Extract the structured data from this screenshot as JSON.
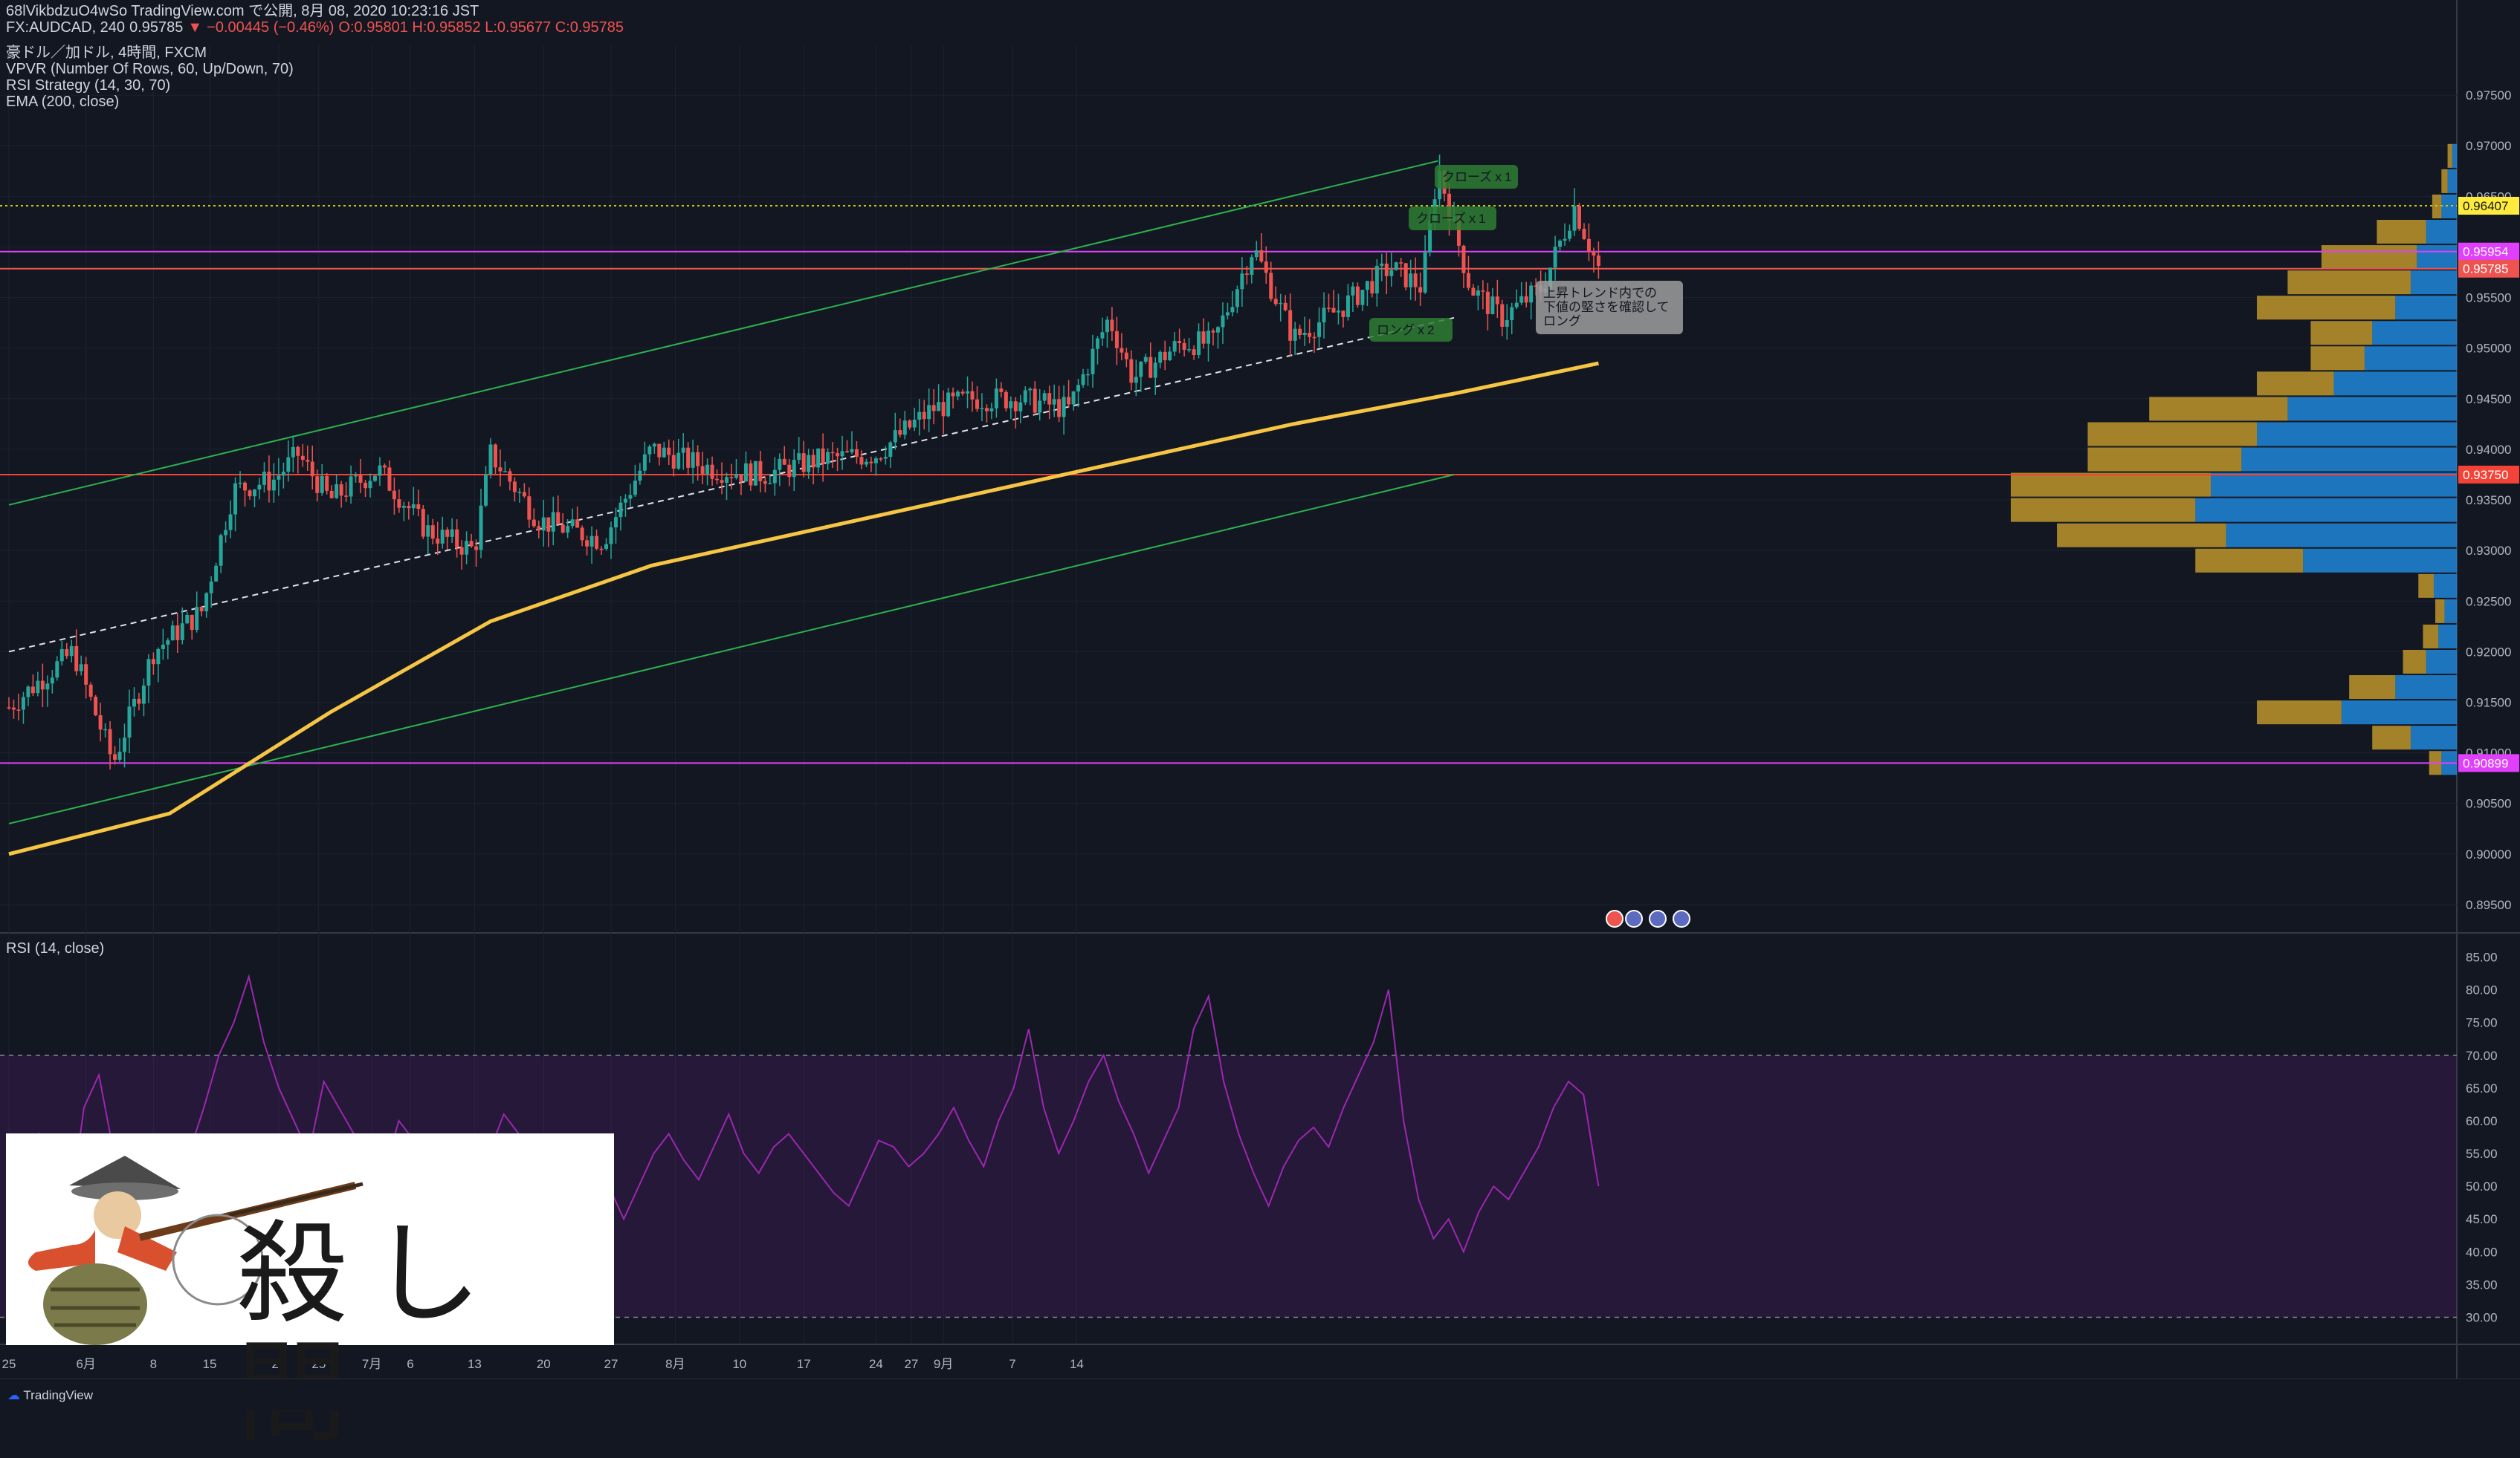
{
  "header": {
    "line1": "68lVikbdzuO4wSo TradingView.com で公開, 8月 08, 2020 10:23:16 JST",
    "symbol": "FX:AUDCAD, 240",
    "last": "0.95785",
    "change": "−0.00445 (−0.46%)",
    "ohlc": "O:0.95801 H:0.95852 L:0.95677 C:0.95785",
    "title": "豪ドル／加ドル, 4時間, FXCM",
    "ind1": "VPVR (Number Of Rows, 60, Up/Down, 70)",
    "ind2": "RSI Strategy (14, 30, 70)",
    "ind3": "EMA (200, close)"
  },
  "rsi_title": "RSI (14, close)",
  "logo": "TradingView",
  "stamp_text": "殺し間",
  "colors": {
    "bg": "#131722",
    "up": "#26a69a",
    "down": "#ef5350",
    "ema": "#f6c544",
    "rsi": "#9c27b0",
    "vp_up": "#2196f3",
    "vp_down": "#d4a72c",
    "channel": "#2bb24c"
  },
  "annotations": {
    "close1": "クローズｘ1",
    "close2": "クローズｘ1",
    "long2": "ロングｘ2",
    "note_line1": "上昇トレンド内での",
    "note_line2": "下値の堅さを確認して",
    "note_line3": "ロング"
  },
  "price_badges": [
    {
      "label": "0.96407",
      "value": 0.96407,
      "bg": "#ffeb3b",
      "fg": "#131722"
    },
    {
      "label": "0.95954",
      "value": 0.95954,
      "bg": "#e040fb",
      "fg": "#ffffff"
    },
    {
      "label": "0.95785",
      "value": 0.95785,
      "bg": "#ef5350",
      "fg": "#ffffff"
    },
    {
      "label": "0.93750",
      "value": 0.9375,
      "bg": "#f44336",
      "fg": "#ffffff"
    },
    {
      "label": "0.90899",
      "value": 0.90899,
      "bg": "#e040fb",
      "fg": "#ffffff"
    }
  ],
  "chart_data": [
    {
      "type": "candlestick",
      "title": "豪ドル／加ドル, 4時間, FXCM",
      "ylim": [
        0.8925,
        0.98
      ],
      "y_ticks": [
        "0.97500",
        "0.97000",
        "0.96500",
        "0.96000",
        "0.95500",
        "0.95000",
        "0.94500",
        "0.94000",
        "0.93500",
        "0.93000",
        "0.92500",
        "0.92000",
        "0.91500",
        "0.91000",
        "0.90500",
        "0.90000",
        "0.89500"
      ],
      "x_ticks": [
        "25",
        "6月",
        "8",
        "15",
        "22",
        "25",
        "7月",
        "6",
        "13",
        "20",
        "27",
        "8月",
        "10",
        "17",
        "24",
        "27",
        "9月",
        "7",
        "14"
      ],
      "anchors": [
        [
          0,
          0.9145
        ],
        [
          40,
          0.92
        ],
        [
          65,
          0.909
        ],
        [
          90,
          0.92
        ],
        [
          120,
          0.924
        ],
        [
          140,
          0.936
        ],
        [
          165,
          0.937
        ],
        [
          180,
          0.9395
        ],
        [
          200,
          0.935
        ],
        [
          230,
          0.938
        ],
        [
          260,
          0.932
        ],
        [
          290,
          0.93
        ],
        [
          300,
          0.9395
        ],
        [
          330,
          0.933
        ],
        [
          370,
          0.931
        ],
        [
          400,
          0.94
        ],
        [
          440,
          0.938
        ],
        [
          470,
          0.9375
        ],
        [
          505,
          0.939
        ],
        [
          540,
          0.9395
        ],
        [
          575,
          0.944
        ],
        [
          600,
          0.945
        ],
        [
          630,
          0.945
        ],
        [
          660,
          0.944
        ],
        [
          685,
          0.953
        ],
        [
          700,
          0.947
        ],
        [
          730,
          0.9505
        ],
        [
          750,
          0.9505
        ],
        [
          775,
          0.96
        ],
        [
          800,
          0.951
        ],
        [
          830,
          0.954
        ],
        [
          860,
          0.958
        ],
        [
          880,
          0.956
        ],
        [
          890,
          0.968
        ],
        [
          910,
          0.956
        ],
        [
          930,
          0.953
        ],
        [
          955,
          0.956
        ],
        [
          975,
          0.964
        ],
        [
          990,
          0.9579
        ]
      ],
      "ema200": [
        [
          0,
          0.9
        ],
        [
          100,
          0.904
        ],
        [
          200,
          0.914
        ],
        [
          300,
          0.923
        ],
        [
          400,
          0.9285
        ],
        [
          500,
          0.932
        ],
        [
          600,
          0.9355
        ],
        [
          700,
          0.939
        ],
        [
          800,
          0.9425
        ],
        [
          900,
          0.9455
        ],
        [
          990,
          0.9485
        ]
      ],
      "channel_upper": [
        [
          0,
          0.9345
        ],
        [
          890,
          0.9685
        ]
      ],
      "channel_lower": [
        [
          0,
          0.903
        ],
        [
          900,
          0.9375
        ]
      ],
      "trend_dashed": [
        [
          0,
          0.92
        ],
        [
          900,
          0.953
        ]
      ],
      "h_lines": [
        {
          "value": 0.9375,
          "color": "#f44336"
        },
        {
          "value": 0.90899,
          "color": "#e040fb"
        },
        {
          "value": 0.95954,
          "color": "#e040fb"
        },
        {
          "value": 0.96407,
          "color": "#c9c914",
          "style": "dotted"
        },
        {
          "value": 0.95785,
          "color": "#ef5350"
        }
      ]
    },
    {
      "type": "area",
      "title": "RSI (14, close)",
      "ylim": [
        27,
        88
      ],
      "y_ticks": [
        "85.00",
        "80.00",
        "75.00",
        "70.00",
        "65.00",
        "60.00",
        "55.00",
        "50.00",
        "45.00",
        "40.00",
        "35.00",
        "30.00"
      ],
      "band": [
        30,
        70
      ],
      "values": [
        52,
        55,
        58,
        50,
        45,
        62,
        67,
        55,
        48,
        43,
        40,
        45,
        55,
        62,
        70,
        75,
        82,
        72,
        65,
        60,
        55,
        66,
        62,
        58,
        55,
        52,
        60,
        57,
        52,
        47,
        45,
        50,
        55,
        61,
        58,
        54,
        47,
        52,
        57,
        53,
        50,
        45,
        50,
        55,
        58,
        54,
        51,
        56,
        61,
        55,
        52,
        56,
        58,
        55,
        52,
        49,
        47,
        52,
        57,
        56,
        53,
        55,
        58,
        62,
        57,
        53,
        60,
        65,
        74,
        62,
        55,
        60,
        66,
        70,
        63,
        58,
        52,
        57,
        62,
        74,
        79,
        66,
        58,
        52,
        47,
        53,
        57,
        59,
        56,
        62,
        67,
        72,
        80,
        60,
        48,
        42,
        45,
        40,
        46,
        50,
        48,
        52,
        56,
        62,
        66,
        64,
        50
      ]
    },
    {
      "type": "bar",
      "title": "VPVR (Number Of Rows, 60, Up/Down, 70)",
      "orientation": "horizontal",
      "bins": [
        {
          "price": 0.969,
          "up": 3,
          "down": 3
        },
        {
          "price": 0.9665,
          "up": 6,
          "down": 4
        },
        {
          "price": 0.964,
          "up": 10,
          "down": 6
        },
        {
          "price": 0.9615,
          "up": 20,
          "down": 32
        },
        {
          "price": 0.959,
          "up": 26,
          "down": 62
        },
        {
          "price": 0.9565,
          "up": 30,
          "down": 80
        },
        {
          "price": 0.954,
          "up": 40,
          "down": 90
        },
        {
          "price": 0.9515,
          "up": 55,
          "down": 40
        },
        {
          "price": 0.949,
          "up": 60,
          "down": 35
        },
        {
          "price": 0.9465,
          "up": 80,
          "down": 50
        },
        {
          "price": 0.944,
          "up": 110,
          "down": 90
        },
        {
          "price": 0.9415,
          "up": 130,
          "down": 110
        },
        {
          "price": 0.939,
          "up": 140,
          "down": 100
        },
        {
          "price": 0.9365,
          "up": 160,
          "down": 130
        },
        {
          "price": 0.934,
          "up": 170,
          "down": 120
        },
        {
          "price": 0.9315,
          "up": 150,
          "down": 110
        },
        {
          "price": 0.929,
          "up": 100,
          "down": 70
        },
        {
          "price": 0.9265,
          "up": 15,
          "down": 10
        },
        {
          "price": 0.924,
          "up": 8,
          "down": 6
        },
        {
          "price": 0.9215,
          "up": 12,
          "down": 10
        },
        {
          "price": 0.919,
          "up": 20,
          "down": 15
        },
        {
          "price": 0.9165,
          "up": 40,
          "down": 30
        },
        {
          "price": 0.914,
          "up": 75,
          "down": 55
        },
        {
          "price": 0.9115,
          "up": 30,
          "down": 25
        },
        {
          "price": 0.909,
          "up": 10,
          "down": 8
        }
      ]
    }
  ]
}
